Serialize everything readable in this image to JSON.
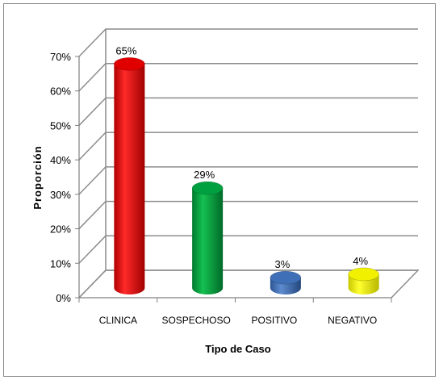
{
  "chart_data": {
    "type": "bar",
    "categories": [
      "CLINICA",
      "SOSPECHOSO",
      "POSITIVO",
      "NEGATIVO"
    ],
    "values": [
      65,
      29,
      3,
      4
    ],
    "data_labels": [
      "65%",
      "29%",
      "3%",
      "4%"
    ],
    "colors": [
      "#e00000",
      "#00a040",
      "#3f6fb6",
      "#f0f000"
    ],
    "ylim": [
      0,
      70
    ],
    "yticks": [
      0,
      10,
      20,
      30,
      40,
      50,
      60,
      70
    ],
    "ytick_labels": [
      "0%",
      "10%",
      "20%",
      "30%",
      "40%",
      "50%",
      "60%",
      "70%"
    ],
    "xlabel": "Tipo de Caso",
    "ylabel": "Proporción",
    "grid": true,
    "style": "3d-cylinder"
  }
}
